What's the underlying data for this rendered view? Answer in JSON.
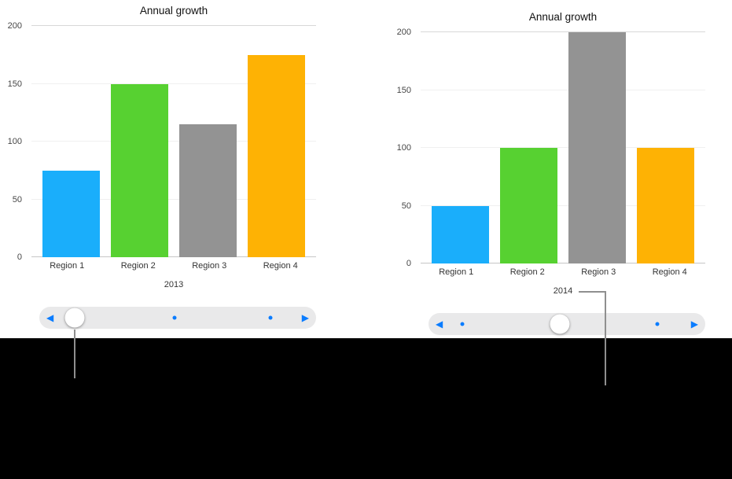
{
  "page": {
    "background": "#ffffff",
    "caption_background": "#000000",
    "accent_color": "#0a7cff",
    "slider_track_color": "#e9e9ea",
    "callout_line_color": "#8f8f8f"
  },
  "chart_data": [
    {
      "type": "bar",
      "title": "Annual growth",
      "categories": [
        "Region 1",
        "Region 2",
        "Region 3",
        "Region 4"
      ],
      "values": [
        75,
        150,
        115,
        175
      ],
      "bar_colors": [
        "#1aaefb",
        "#57d131",
        "#939393",
        "#feb204"
      ],
      "xlabel": "2013",
      "ylabel": "",
      "ylim": [
        0,
        200
      ],
      "yticks": [
        0,
        50,
        100,
        150,
        200
      ],
      "grid": true,
      "legend": "none"
    },
    {
      "type": "bar",
      "title": "Annual growth",
      "categories": [
        "Region 1",
        "Region 2",
        "Region 3",
        "Region 4"
      ],
      "values": [
        50,
        100,
        200,
        100
      ],
      "bar_colors": [
        "#1aaefb",
        "#57d131",
        "#939393",
        "#feb204"
      ],
      "xlabel": "2014",
      "ylabel": "",
      "ylim": [
        0,
        200
      ],
      "yticks": [
        0,
        50,
        100,
        150,
        200
      ],
      "grid": true,
      "legend": "none"
    }
  ],
  "sliders": [
    {
      "label": "chart pager 2013",
      "knob_position": 0.128,
      "dots": [
        0.489,
        0.835
      ]
    },
    {
      "label": "chart pager 2014",
      "knob_position": 0.474,
      "dots": [
        0.122,
        0.827
      ]
    }
  ],
  "slider_controls": {
    "prev_glyph": "◀",
    "next_glyph": "▶"
  }
}
